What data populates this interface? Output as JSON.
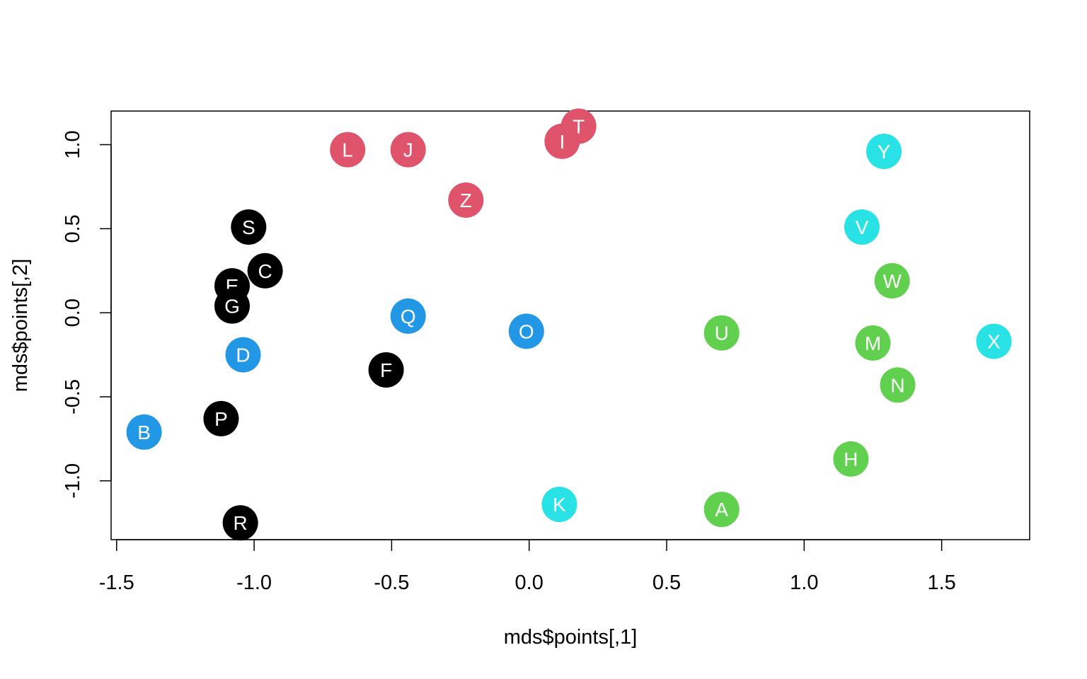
{
  "chart_data": {
    "type": "scatter",
    "xlabel": "mds$points[,1]",
    "ylabel": "mds$points[,2]",
    "xlim": [
      -1.52,
      1.82
    ],
    "ylim": [
      -1.35,
      1.2
    ],
    "x_ticks": [
      -1.5,
      -1.0,
      -0.5,
      0.0,
      0.5,
      1.0,
      1.5
    ],
    "x_tick_labels": [
      "-1.5",
      "-1.0",
      "-0.5",
      "0.0",
      "0.5",
      "1.0",
      "1.5"
    ],
    "y_ticks": [
      -1.0,
      -0.5,
      0.0,
      0.5,
      1.0
    ],
    "y_tick_labels": [
      "-1.0",
      "-0.5",
      "0.0",
      "0.5",
      "1.0"
    ],
    "grid": false,
    "colors": {
      "black": "#000000",
      "red": "#DF536B",
      "blue": "#2297E6",
      "cyan": "#28E2E5",
      "green": "#61D04F"
    },
    "points": [
      {
        "label": "A",
        "x": 0.7,
        "y": -1.17,
        "color": "green"
      },
      {
        "label": "B",
        "x": -1.4,
        "y": -0.71,
        "color": "blue"
      },
      {
        "label": "C",
        "x": -0.96,
        "y": 0.25,
        "color": "black"
      },
      {
        "label": "D",
        "x": -1.04,
        "y": -0.25,
        "color": "blue"
      },
      {
        "label": "E",
        "x": -1.08,
        "y": 0.16,
        "color": "black"
      },
      {
        "label": "F",
        "x": -0.52,
        "y": -0.34,
        "color": "black"
      },
      {
        "label": "G",
        "x": -1.08,
        "y": 0.04,
        "color": "black"
      },
      {
        "label": "H",
        "x": 1.17,
        "y": -0.87,
        "color": "green"
      },
      {
        "label": "I",
        "x": 0.12,
        "y": 1.02,
        "color": "red"
      },
      {
        "label": "J",
        "x": -0.44,
        "y": 0.97,
        "color": "red"
      },
      {
        "label": "K",
        "x": 0.11,
        "y": -1.14,
        "color": "cyan"
      },
      {
        "label": "L",
        "x": -0.66,
        "y": 0.97,
        "color": "red"
      },
      {
        "label": "M",
        "x": 1.25,
        "y": -0.18,
        "color": "green"
      },
      {
        "label": "N",
        "x": 1.34,
        "y": -0.43,
        "color": "green"
      },
      {
        "label": "O",
        "x": -0.01,
        "y": -0.11,
        "color": "blue"
      },
      {
        "label": "P",
        "x": -1.12,
        "y": -0.63,
        "color": "black"
      },
      {
        "label": "Q",
        "x": -0.44,
        "y": -0.02,
        "color": "blue"
      },
      {
        "label": "R",
        "x": -1.05,
        "y": -1.25,
        "color": "black"
      },
      {
        "label": "S",
        "x": -1.02,
        "y": 0.51,
        "color": "black"
      },
      {
        "label": "T",
        "x": 0.18,
        "y": 1.11,
        "color": "red"
      },
      {
        "label": "U",
        "x": 0.7,
        "y": -0.12,
        "color": "green"
      },
      {
        "label": "V",
        "x": 1.21,
        "y": 0.51,
        "color": "cyan"
      },
      {
        "label": "W",
        "x": 1.32,
        "y": 0.19,
        "color": "green"
      },
      {
        "label": "X",
        "x": 1.69,
        "y": -0.17,
        "color": "cyan"
      },
      {
        "label": "Y",
        "x": 1.29,
        "y": 0.96,
        "color": "cyan"
      },
      {
        "label": "Z",
        "x": -0.23,
        "y": 0.67,
        "color": "red"
      }
    ]
  }
}
